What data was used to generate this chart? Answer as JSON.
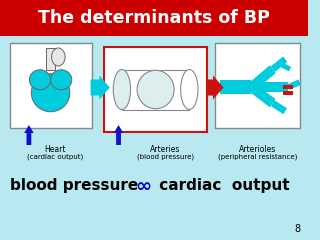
{
  "title": "The determinants of BP",
  "title_bg": "#cc0000",
  "title_fg": "#ffffff",
  "bg_color": "#b8e8f0",
  "bottom_text_left": "blood pressure ",
  "bottom_text_symbol": "∞",
  "bottom_text_right": " cardiac  output",
  "bottom_text_color": "#000000",
  "bottom_symbol_color": "#0000cc",
  "label1": "Heart",
  "label1_sub": "(cardiac output)",
  "label2": "Arteries",
  "label2_sub": "(blood pressure)",
  "label3": "Arterioles",
  "label3_sub": "(peripheral resistance)",
  "page_num": "8",
  "heart_color": "#00ccdd",
  "heart_outline": "#666666",
  "artery_fill": "#ddeeee",
  "cyan_arrow": "#00ccdd",
  "red_arrow": "#cc1111",
  "blue_arrow": "#1111cc",
  "box_edge": "#888888",
  "red_box_edge": "#cc1111"
}
